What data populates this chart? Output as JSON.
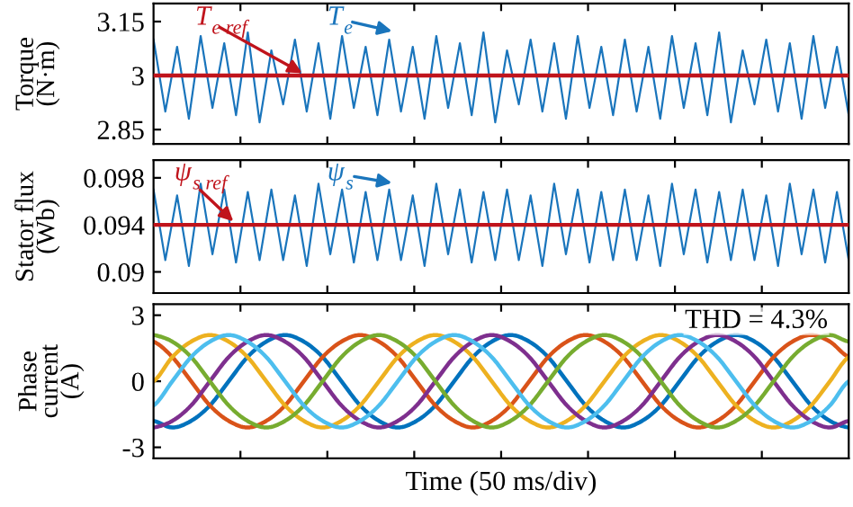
{
  "chart_data": [
    {
      "type": "line",
      "ylabel": "Torque\n(N·m)",
      "categories": [
        null,
        null,
        null,
        null,
        null,
        null,
        null,
        null,
        null,
        null,
        null,
        null,
        null,
        null,
        null,
        null,
        null,
        null,
        null,
        null,
        null,
        null,
        null,
        null,
        null,
        null,
        null,
        null,
        null,
        null,
        null,
        null,
        null,
        null,
        null,
        null,
        null,
        null,
        null,
        null,
        null,
        null,
        null,
        null,
        null,
        null,
        null,
        null,
        null,
        null,
        null,
        null,
        null,
        null,
        null,
        null,
        null,
        null,
        null,
        null
      ],
      "series": [
        {
          "name": "T$_{e}$",
          "color": "#1a75bc",
          "values": [
            3.1,
            2.9,
            3.08,
            2.88,
            3.11,
            2.91,
            3.09,
            2.89,
            3.12,
            2.87,
            3.07,
            2.92,
            3.1,
            2.9,
            3.09,
            2.88,
            3.11,
            2.91,
            3.08,
            2.89,
            3.1,
            2.9,
            3.08,
            2.88,
            3.11,
            2.91,
            3.09,
            2.89,
            3.12,
            2.87,
            3.07,
            2.92,
            3.1,
            2.9,
            3.09,
            2.88,
            3.11,
            2.91,
            3.08,
            2.89,
            3.1,
            2.9,
            3.08,
            2.88,
            3.11,
            2.91,
            3.09,
            2.89,
            3.12,
            2.87,
            3.07,
            2.92,
            3.1,
            2.9,
            3.09,
            2.88,
            3.11,
            2.91,
            3.08,
            2.89
          ]
        }
      ],
      "ref_lines": [
        {
          "axis": "y",
          "value": 3,
          "label": "T$_{e ref}$",
          "color": "#c0141c"
        }
      ],
      "ylim": [
        2.81,
        3.2
      ],
      "yticks": [
        2.85,
        3,
        3.15
      ],
      "tick_labels": "y",
      "grid": false
    },
    {
      "type": "line",
      "ylabel": "Stator flux\n(Wb)",
      "categories": [
        null,
        null,
        null,
        null,
        null,
        null,
        null,
        null,
        null,
        null,
        null,
        null,
        null,
        null,
        null,
        null,
        null,
        null,
        null,
        null,
        null,
        null,
        null,
        null,
        null,
        null,
        null,
        null,
        null,
        null,
        null,
        null,
        null,
        null,
        null,
        null,
        null,
        null,
        null,
        null,
        null,
        null,
        null,
        null,
        null,
        null,
        null,
        null,
        null,
        null,
        null,
        null,
        null,
        null,
        null,
        null,
        null,
        null,
        null,
        null
      ],
      "series": [
        {
          "name": "ψ$_{s}$",
          "color": "#1a75bc",
          "values": [
            0.097,
            0.091,
            0.0965,
            0.0905,
            0.0975,
            0.0915,
            0.097,
            0.0908,
            0.0968,
            0.091,
            0.097,
            0.091,
            0.0965,
            0.0905,
            0.0975,
            0.0915,
            0.097,
            0.0908,
            0.0968,
            0.091,
            0.097,
            0.091,
            0.0965,
            0.0905,
            0.0975,
            0.0915,
            0.097,
            0.0908,
            0.0968,
            0.091,
            0.097,
            0.091,
            0.0965,
            0.0905,
            0.0975,
            0.0915,
            0.097,
            0.0908,
            0.0968,
            0.091,
            0.097,
            0.091,
            0.0965,
            0.0905,
            0.0975,
            0.0915,
            0.097,
            0.0908,
            0.0968,
            0.091,
            0.097,
            0.091,
            0.0965,
            0.0905,
            0.0975,
            0.0915,
            0.097,
            0.0908,
            0.0968,
            0.091
          ]
        }
      ],
      "ref_lines": [
        {
          "axis": "y",
          "value": 0.094,
          "label": "ψ$_{s ref}$",
          "color": "#c0141c"
        }
      ],
      "ylim": [
        0.0882,
        0.0995
      ],
      "yticks": [
        0.09,
        0.094,
        0.098
      ],
      "tick_labels": "y",
      "grid": false
    },
    {
      "type": "line",
      "xlabel": "Time (50 ms/div)",
      "ylabel": "Phase\ncurrent\n(A)",
      "categories": [
        null,
        null,
        null,
        null,
        null,
        null,
        null,
        null,
        null,
        null,
        null,
        null,
        null,
        null,
        null,
        null,
        null,
        null,
        null,
        null,
        null,
        null,
        null,
        null,
        null,
        null,
        null,
        null,
        null,
        null,
        null,
        null,
        null,
        null,
        null,
        null,
        null,
        null
      ],
      "series": [
        {
          "color": "#0072bd",
          "values": [
            -1.8,
            -2.1,
            -1.8,
            -1.1,
            0,
            1.1,
            1.8,
            2.1,
            1.8,
            1.1,
            0,
            -1.1,
            -1.8,
            -2.1,
            -1.8,
            -1.1,
            0,
            1.1,
            1.8,
            2.1,
            1.8,
            1.1,
            0,
            -1.1,
            -1.8,
            -2.1,
            -1.8,
            -1.1,
            0,
            1.1,
            1.8,
            2.1,
            1.8,
            1.1,
            0,
            -1.1,
            -1.8,
            -2.1
          ]
        },
        {
          "color": "#d95319",
          "values": [
            1.8,
            1.1,
            0,
            -1.1,
            -1.8,
            -2.1,
            -1.8,
            -1.1,
            0,
            1.1,
            1.8,
            2.1,
            1.8,
            1.1,
            0,
            -1.1,
            -1.8,
            -2.1,
            -1.8,
            -1.1,
            0,
            1.1,
            1.8,
            2.1,
            1.8,
            1.1,
            0,
            -1.1,
            -1.8,
            -2.1,
            -1.8,
            -1.1,
            0,
            1.1,
            1.8,
            2.1,
            1.8,
            1.1
          ]
        },
        {
          "color": "#edb120",
          "values": [
            0,
            1.1,
            1.8,
            2.1,
            1.8,
            1.1,
            0,
            -1.1,
            -1.8,
            -2.1,
            -1.8,
            -1.1,
            0,
            1.1,
            1.8,
            2.1,
            1.8,
            1.1,
            0,
            -1.1,
            -1.8,
            -2.1,
            -1.8,
            -1.1,
            0,
            1.1,
            1.8,
            2.1,
            1.8,
            1.1,
            0,
            -1.1,
            -1.8,
            -2.1,
            -1.8,
            -1.1,
            0,
            1.1
          ]
        },
        {
          "color": "#7e2f8e",
          "values": [
            -2.1,
            -1.8,
            -1.1,
            0,
            1.1,
            1.8,
            2.1,
            1.8,
            1.1,
            0,
            -1.1,
            -1.8,
            -2.1,
            -1.8,
            -1.1,
            0,
            1.1,
            1.8,
            2.1,
            1.8,
            1.1,
            0,
            -1.1,
            -1.8,
            -2.1,
            -1.8,
            -1.1,
            0,
            1.1,
            1.8,
            2.1,
            1.8,
            1.1,
            0,
            -1.1,
            -1.8,
            -2.1,
            -1.8
          ]
        },
        {
          "color": "#77ac30",
          "values": [
            2.1,
            1.8,
            1.1,
            0,
            -1.1,
            -1.8,
            -2.1,
            -1.8,
            -1.1,
            0,
            1.1,
            1.8,
            2.1,
            1.8,
            1.1,
            0,
            -1.1,
            -1.8,
            -2.1,
            -1.8,
            -1.1,
            0,
            1.1,
            1.8,
            2.1,
            1.8,
            1.1,
            0,
            -1.1,
            -1.8,
            -2.1,
            -1.8,
            -1.1,
            0,
            1.1,
            1.8,
            2.1,
            1.8
          ]
        },
        {
          "color": "#4dbeee",
          "values": [
            -1.1,
            0,
            1.1,
            1.8,
            2.1,
            1.8,
            1.1,
            0,
            -1.1,
            -1.8,
            -2.1,
            -1.8,
            -1.1,
            0,
            1.1,
            1.8,
            2.1,
            1.8,
            1.1,
            0,
            -1.1,
            -1.8,
            -2.1,
            -1.8,
            -1.1,
            0,
            1.1,
            1.8,
            2.1,
            1.8,
            1.1,
            0,
            -1.1,
            -1.8,
            -2.1,
            -1.8,
            -1.1,
            0
          ]
        }
      ],
      "annotations": [
        "THD = 4.3%"
      ],
      "ylim": [
        -3.5,
        3.5
      ],
      "yticks": [
        -3,
        0,
        3
      ],
      "tick_labels": "y",
      "grid": false
    }
  ]
}
